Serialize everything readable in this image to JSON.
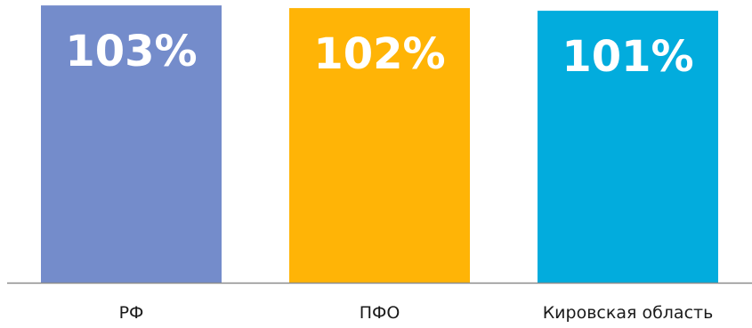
{
  "chart_data": {
    "type": "bar",
    "categories": [
      "РФ",
      "ПФО",
      "Кировская область"
    ],
    "values": [
      103,
      102,
      101
    ],
    "data_labels": [
      "103%",
      "102%",
      "101%"
    ],
    "colors": [
      "#748CCB",
      "#FFB406",
      "#02ACDD"
    ],
    "axis_color": "#8C8C8C",
    "label_color": "#FFFFFF",
    "ylim": [
      0,
      105
    ],
    "title": "",
    "xlabel": "",
    "ylabel": "",
    "grid": false,
    "legend": "none"
  }
}
